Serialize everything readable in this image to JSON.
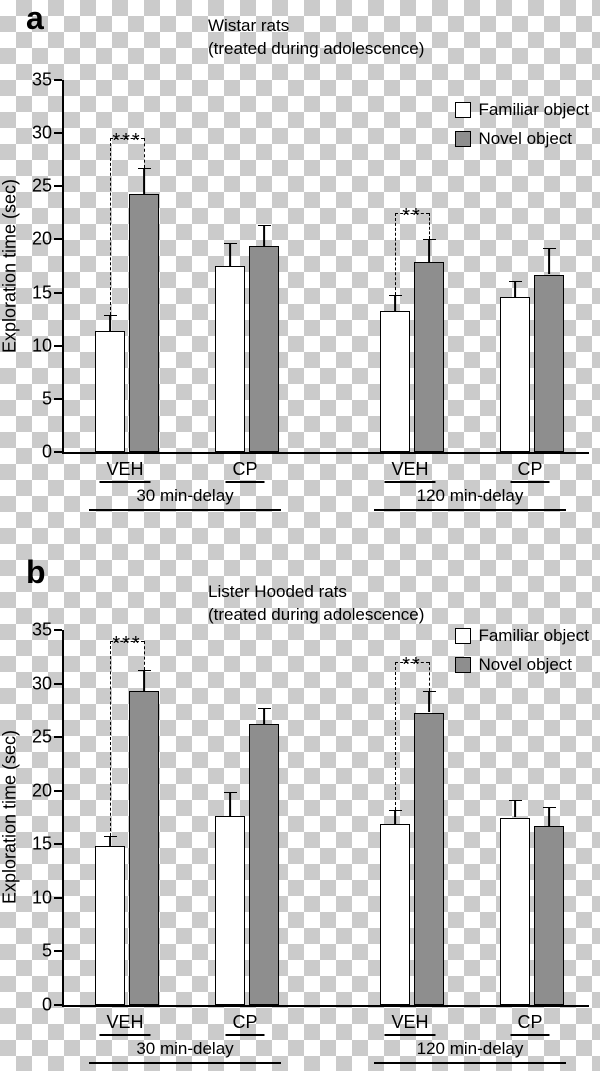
{
  "chart_data": [
    {
      "type": "bar",
      "panel_label": "a",
      "title": "Wistar rats",
      "subtitle": "(treated during adolescence)",
      "xlabel": "",
      "ylabel": "Exploration time (sec)",
      "ylim": [
        0,
        35
      ],
      "yticks": [
        0,
        5,
        10,
        15,
        20,
        25,
        30,
        35
      ],
      "grid": false,
      "legend_position": "top-right",
      "categories": [
        "VEH",
        "CP",
        "VEH",
        "CP"
      ],
      "group_labels": [
        "30 min-delay",
        "120 min-delay"
      ],
      "series": [
        {
          "name": "Familiar object",
          "color": "#ffffff",
          "values": [
            11.4,
            17.5,
            13.3,
            14.6
          ],
          "errors": [
            1.5,
            2.2,
            1.5,
            1.5
          ]
        },
        {
          "name": "Novel object",
          "color": "#8e8e8e",
          "values": [
            24.3,
            19.4,
            17.9,
            16.7
          ],
          "errors": [
            2.4,
            2.0,
            2.1,
            2.5
          ]
        }
      ],
      "significance": [
        {
          "category_index": 0,
          "label": "***",
          "top": 29.5
        },
        {
          "category_index": 2,
          "label": "**",
          "top": 22.5
        }
      ]
    },
    {
      "type": "bar",
      "panel_label": "b",
      "title": "Lister Hooded rats",
      "subtitle": "(treated during adolescence)",
      "xlabel": "",
      "ylabel": "Exploration time (sec)",
      "ylim": [
        0,
        35
      ],
      "yticks": [
        0,
        5,
        10,
        15,
        20,
        25,
        30,
        35
      ],
      "grid": false,
      "legend_position": "top-right",
      "categories": [
        "VEH",
        "CP",
        "VEH",
        "CP"
      ],
      "group_labels": [
        "30 min-delay",
        "120 min-delay"
      ],
      "series": [
        {
          "name": "Familiar object",
          "color": "#ffffff",
          "values": [
            14.8,
            17.6,
            16.9,
            17.5
          ],
          "errors": [
            1.0,
            2.3,
            1.3,
            1.6
          ]
        },
        {
          "name": "Novel object",
          "color": "#8e8e8e",
          "values": [
            29.3,
            26.2,
            27.3,
            16.7
          ],
          "errors": [
            2.0,
            1.5,
            2.0,
            1.8
          ]
        }
      ],
      "significance": [
        {
          "category_index": 0,
          "label": "***",
          "top": 34
        },
        {
          "category_index": 2,
          "label": "**",
          "top": 32
        }
      ]
    }
  ]
}
